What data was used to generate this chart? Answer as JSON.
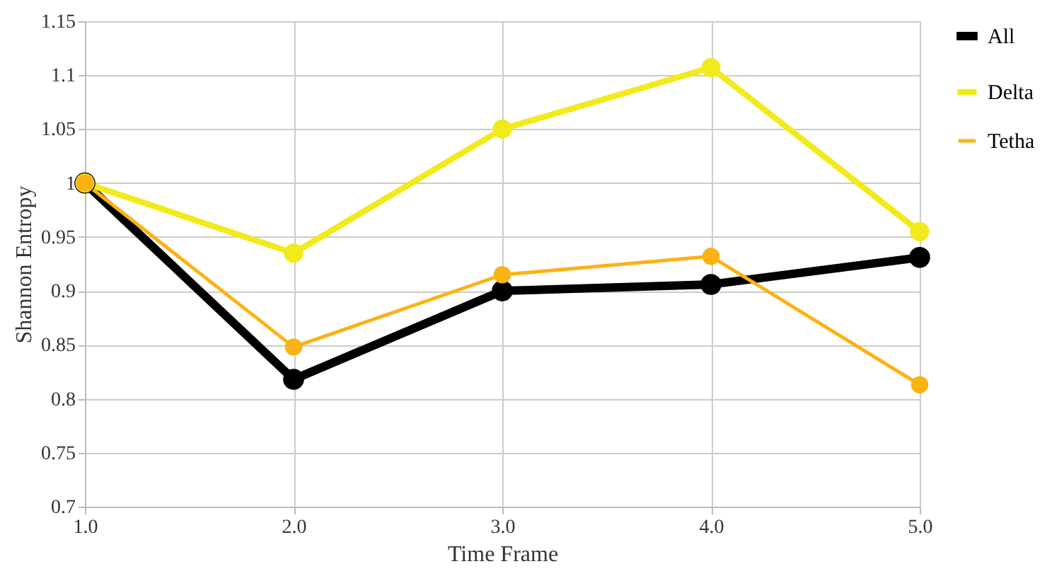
{
  "chart_data": {
    "type": "line",
    "xlabel": "Time Frame",
    "ylabel": "Shannon Entropy",
    "x": [
      1,
      2,
      3,
      4,
      5
    ],
    "series": [
      {
        "name": "All",
        "color": "#000000",
        "values": [
          1.0,
          0.818,
          0.9,
          0.906,
          0.931
        ]
      },
      {
        "name": "Delta",
        "color": "#f2ea1c",
        "values": [
          1.0,
          0.935,
          1.05,
          1.107,
          0.955
        ]
      },
      {
        "name": "Tetha",
        "color": "#fbb215",
        "values": [
          1.0,
          0.848,
          0.915,
          0.932,
          0.813
        ]
      }
    ],
    "xlim": [
      1,
      5
    ],
    "xticks": [
      {
        "value": 1,
        "label": "1.0"
      },
      {
        "value": 2,
        "label": "2.0"
      },
      {
        "value": 3,
        "label": "3.0"
      },
      {
        "value": 4,
        "label": "4.0"
      },
      {
        "value": 5,
        "label": "5.0"
      }
    ],
    "ylim": [
      0.7,
      1.15
    ],
    "yticks": [
      0.7,
      0.75,
      0.8,
      0.85,
      0.9,
      0.95,
      1,
      1.05,
      1.1,
      1.15
    ],
    "grid": true,
    "legend": "right",
    "marker": "circle",
    "line_style": "solid"
  }
}
